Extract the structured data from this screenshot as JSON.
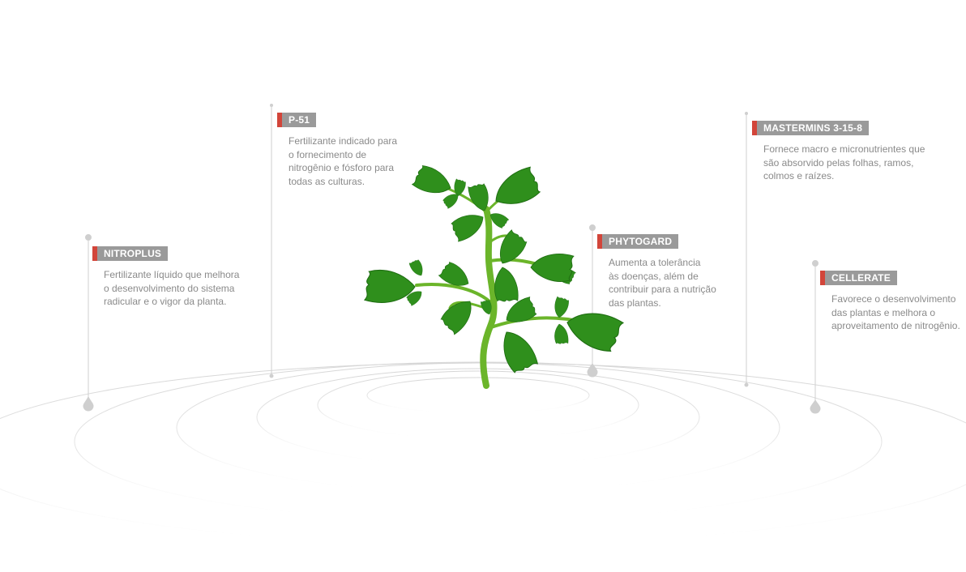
{
  "colors": {
    "background": "#ffffff",
    "label_bg": "#9a9a9a",
    "label_accent": "#d2453a",
    "label_text": "#ffffff",
    "description_text": "#8a8a8a",
    "rings": "#d9d9d9",
    "pins": "#cfcfcf",
    "leaf": "#2f8f1c",
    "stem": "#6bb52a"
  },
  "products": [
    {
      "id": "nitroplus",
      "name": "NITROPLUS",
      "description": "Fertilizante líquido que melhora\no desenvolvimento do sistema\n radicular e o vigor da planta."
    },
    {
      "id": "p51",
      "name": "P-51",
      "description": "Fertilizante indicado para\no fornecimento de\nnitrogênio e fósforo para\ntodas as culturas."
    },
    {
      "id": "phytogard",
      "name": "PHYTOGARD",
      "description": "Aumenta a tolerância\nàs doenças, além de\ncontribuir para a nutrição\ndas plantas."
    },
    {
      "id": "mastermins",
      "name": "MASTERMINS 3-15-8",
      "description": "Fornece macro e micronutrientes que\nsão absorvido pelas folhas, ramos,\ncolmos e raízes."
    },
    {
      "id": "cellerate",
      "name": "CELLERATE",
      "description": "Favorece o desenvolvimento\ndas plantas e melhora o\naproveitamento de nitrogênio."
    }
  ]
}
